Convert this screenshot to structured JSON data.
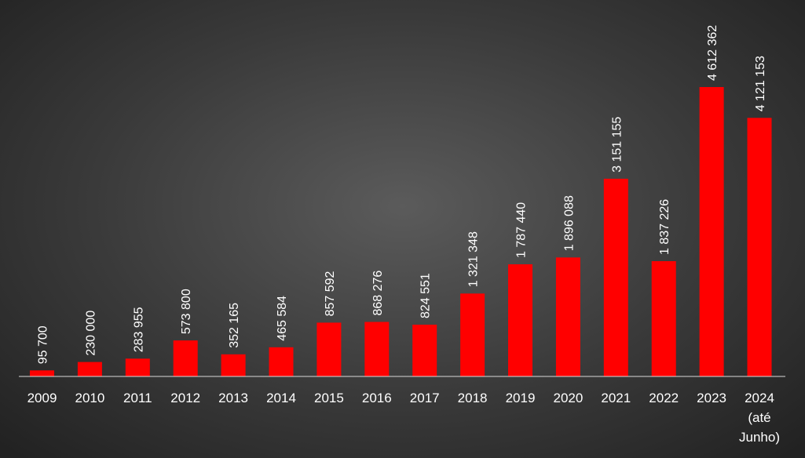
{
  "chart_data": {
    "type": "bar",
    "categories": [
      "2009",
      "2010",
      "2011",
      "2012",
      "2013",
      "2014",
      "2015",
      "2016",
      "2017",
      "2018",
      "2019",
      "2020",
      "2021",
      "2022",
      "2023",
      "2024\n(até\nJunho)"
    ],
    "values": [
      95700,
      230000,
      283955,
      573800,
      352165,
      465584,
      857592,
      868276,
      824551,
      1321348,
      1787440,
      1896088,
      3151155,
      1837226,
      4612362,
      4121153
    ],
    "data_labels": [
      "95 700",
      "230 000",
      "283 955",
      "573 800",
      "352 165",
      "465 584",
      "857 592",
      "868 276",
      "824 551",
      "1 321 348",
      "1 787 440",
      "1 896 088",
      "3 151 155",
      "1 837 226",
      "4 612 362",
      "4 121 153"
    ],
    "title": "",
    "xlabel": "",
    "ylabel": "",
    "ylim": [
      0,
      4612362
    ],
    "grid": false,
    "legend": "none",
    "bar_color": "#ff0000",
    "label_color": "#ffffff",
    "axis_color": "#d9d9d9"
  }
}
